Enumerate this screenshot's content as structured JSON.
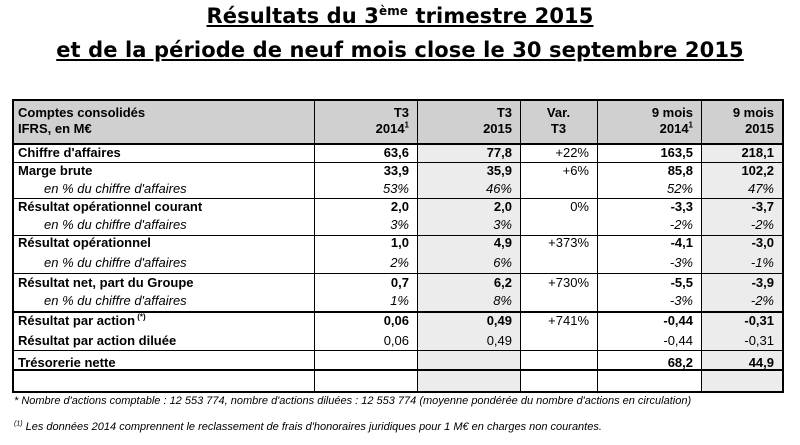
{
  "title": {
    "line1_prefix": "Résultats du 3",
    "line1_sup": "ème",
    "line1_suffix": " trimestre 2015",
    "line2": "et de la période de neuf mois close le 30 septembre 2015"
  },
  "table": {
    "header": {
      "label_line1": "Comptes consolidés",
      "label_line2": "IFRS, en M€",
      "cols": [
        {
          "line1": "T3",
          "line2": "2014",
          "sup": "1"
        },
        {
          "line1": "T3",
          "line2": "2015",
          "sup": ""
        },
        {
          "line1": "Var.",
          "line2": "T3",
          "sup": ""
        },
        {
          "line1": "9 mois",
          "line2": "2014",
          "sup": "1"
        },
        {
          "line1": "9 mois",
          "line2": "2015",
          "sup": ""
        }
      ]
    },
    "rows": [
      {
        "label": "Chiffre d'affaires",
        "sup": "",
        "v": [
          "63,6",
          "77,8",
          "+22%",
          "163,5",
          "218,1"
        ],
        "style": "bold"
      },
      {
        "label": "Marge brute",
        "sup": "",
        "v": [
          "33,9",
          "35,9",
          "+6%",
          "85,8",
          "102,2"
        ],
        "style": "bold"
      },
      {
        "label": "en % du chiffre d'affaires",
        "sup": "",
        "v": [
          "53%",
          "46%",
          "",
          "52%",
          "47%"
        ],
        "style": "italic"
      },
      {
        "label": "Résultat opérationnel courant",
        "sup": "",
        "v": [
          "2,0",
          "2,0",
          "0%",
          "-3,3",
          "-3,7"
        ],
        "style": "bold"
      },
      {
        "label": "en % du chiffre d'affaires",
        "sup": "",
        "v": [
          "3%",
          "3%",
          "",
          "-2%",
          "-2%"
        ],
        "style": "italic"
      },
      {
        "label": "Résultat opérationnel",
        "sup": "",
        "v": [
          "1,0",
          "4,9",
          "+373%",
          "-4,1",
          "-3,0"
        ],
        "style": "bold"
      },
      {
        "label": "en % du chiffre d'affaires",
        "sup": "",
        "v": [
          "2%",
          "6%",
          "",
          "-3%",
          "-1%"
        ],
        "style": "italic"
      },
      {
        "label": "Résultat net, part du Groupe",
        "sup": "",
        "v": [
          "0,7",
          "6,2",
          "+730%",
          "-5,5",
          "-3,9"
        ],
        "style": "bold"
      },
      {
        "label": "en % du chiffre d'affaires",
        "sup": "",
        "v": [
          "1%",
          "8%",
          "",
          "-3%",
          "-2%"
        ],
        "style": "italic"
      },
      {
        "label": "Résultat par action",
        "sup": "(*)",
        "v": [
          "0,06",
          "0,49",
          "+741%",
          "-0,44",
          "-0,31"
        ],
        "style": "bold"
      },
      {
        "label": "Résultat par action diluée",
        "sup": "",
        "v": [
          "0,06",
          "0,49",
          "",
          "-0,44",
          "-0,31"
        ],
        "style": "boldlabel"
      },
      {
        "label": "Trésorerie nette",
        "sup": "",
        "v": [
          "",
          "",
          "",
          "68,2",
          "44,9"
        ],
        "style": "bold"
      }
    ]
  },
  "footnotes": {
    "note1": "* Nombre d'actions comptable : 12 553 774, nombre d'actions diluées : 12 553 774 (moyenne pondérée du nombre d'actions en circulation)",
    "note2_sup": "(1)",
    "note2": " Les données 2014 comprennent le reclassement de frais d'honoraires juridiques pour 1 M€ en charges non courantes."
  }
}
